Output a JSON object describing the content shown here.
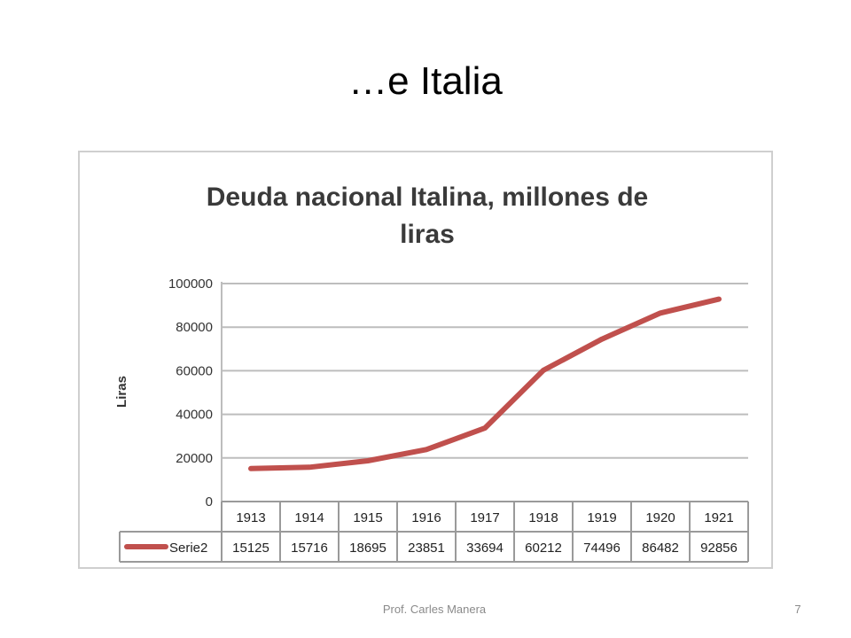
{
  "slide": {
    "title": "…e Italia",
    "footer_author": "Prof. Carles Manera",
    "page_number": "7"
  },
  "chart_data": {
    "type": "line",
    "title": "Deuda nacional Italina, millones de liras",
    "title_lines": [
      "Deuda nacional Italina, millones de",
      "liras"
    ],
    "xlabel": "",
    "ylabel": "Liras",
    "categories": [
      "1913",
      "1914",
      "1915",
      "1916",
      "1917",
      "1918",
      "1919",
      "1920",
      "1921"
    ],
    "series": [
      {
        "name": "Serie2",
        "color": "#c0504d",
        "values": [
          15125,
          15716,
          18695,
          23851,
          33694,
          60212,
          74496,
          86482,
          92856
        ]
      }
    ],
    "yticks": [
      "0",
      "20000",
      "40000",
      "60000",
      "80000",
      "100000"
    ],
    "ylim": [
      0,
      100000
    ],
    "grid": true,
    "legend": "data-table"
  }
}
